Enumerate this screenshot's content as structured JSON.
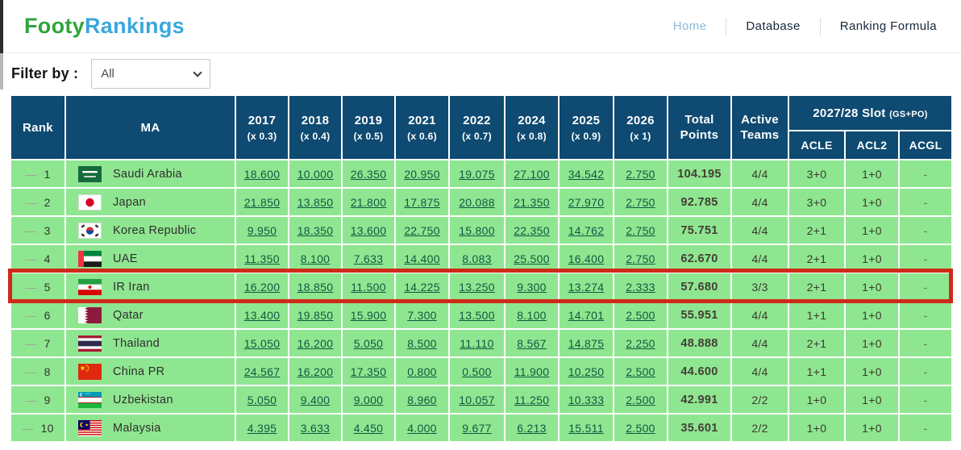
{
  "brand": {
    "name": "FootyRankings",
    "part1": "Footy",
    "part2": "Rankings"
  },
  "nav": {
    "items": [
      {
        "label": "Home",
        "active": true
      },
      {
        "label": "Database",
        "active": false
      },
      {
        "label": "Ranking Formula",
        "active": false
      }
    ]
  },
  "filter": {
    "label": "Filter by :",
    "selected": "All",
    "options": [
      "All"
    ]
  },
  "table": {
    "columns": {
      "rank": "Rank",
      "ma": "MA",
      "years": [
        {
          "year": "2017",
          "mult": "(x 0.3)"
        },
        {
          "year": "2018",
          "mult": "(x 0.4)"
        },
        {
          "year": "2019",
          "mult": "(x 0.5)"
        },
        {
          "year": "2021",
          "mult": "(x 0.6)"
        },
        {
          "year": "2022",
          "mult": "(x 0.7)"
        },
        {
          "year": "2024",
          "mult": "(x 0.8)"
        },
        {
          "year": "2025",
          "mult": "(x 0.9)"
        },
        {
          "year": "2026",
          "mult": "(x 1)"
        }
      ],
      "total_lines": [
        "Total",
        "Points"
      ],
      "active_lines": [
        "Active",
        "Teams"
      ],
      "slot_group": "2027/28 Slot",
      "slot_group_note": "(GS+PO)",
      "slots": [
        "ACLE",
        "ACL2",
        "ACGL"
      ]
    },
    "rows": [
      {
        "trend": "—",
        "rank": "1",
        "flag": "saudi-arabia",
        "country": "Saudi Arabia",
        "scores": [
          "18.600",
          "10.000",
          "26.350",
          "20.950",
          "19.075",
          "27.100",
          "34.542",
          "2.750"
        ],
        "total": "104.195",
        "active": "4/4",
        "slots": [
          "3+0",
          "1+0",
          "-"
        ],
        "highlighted": false
      },
      {
        "trend": "—",
        "rank": "2",
        "flag": "japan",
        "country": "Japan",
        "scores": [
          "21.850",
          "13.850",
          "21.800",
          "17.875",
          "20.088",
          "21.350",
          "27.970",
          "2.750"
        ],
        "total": "92.785",
        "active": "4/4",
        "slots": [
          "3+0",
          "1+0",
          "-"
        ],
        "highlighted": false
      },
      {
        "trend": "—",
        "rank": "3",
        "flag": "korea-republic",
        "country": "Korea Republic",
        "scores": [
          "9.950",
          "18.350",
          "13.600",
          "22.750",
          "15.800",
          "22.350",
          "14.762",
          "2.750"
        ],
        "total": "75.751",
        "active": "4/4",
        "slots": [
          "2+1",
          "1+0",
          "-"
        ],
        "highlighted": false
      },
      {
        "trend": "—",
        "rank": "4",
        "flag": "uae",
        "country": "UAE",
        "scores": [
          "11.350",
          "8.100",
          "7.633",
          "14.400",
          "8.083",
          "25.500",
          "16.400",
          "2.750"
        ],
        "total": "62.670",
        "active": "4/4",
        "slots": [
          "2+1",
          "1+0",
          "-"
        ],
        "highlighted": false
      },
      {
        "trend": "—",
        "rank": "5",
        "flag": "ir-iran",
        "country": "IR Iran",
        "scores": [
          "16.200",
          "18.850",
          "11.500",
          "14.225",
          "13.250",
          "9.300",
          "13.274",
          "2.333"
        ],
        "total": "57.680",
        "active": "3/3",
        "slots": [
          "2+1",
          "1+0",
          "-"
        ],
        "highlighted": true
      },
      {
        "trend": "—",
        "rank": "6",
        "flag": "qatar",
        "country": "Qatar",
        "scores": [
          "13.400",
          "19.850",
          "15.900",
          "7.300",
          "13.500",
          "8.100",
          "14.701",
          "2.500"
        ],
        "total": "55.951",
        "active": "4/4",
        "slots": [
          "1+1",
          "1+0",
          "-"
        ],
        "highlighted": false
      },
      {
        "trend": "—",
        "rank": "7",
        "flag": "thailand",
        "country": "Thailand",
        "scores": [
          "15.050",
          "16.200",
          "5.050",
          "8.500",
          "11.110",
          "8.567",
          "14.875",
          "2.250"
        ],
        "total": "48.888",
        "active": "4/4",
        "slots": [
          "2+1",
          "1+0",
          "-"
        ],
        "highlighted": false
      },
      {
        "trend": "—",
        "rank": "8",
        "flag": "china-pr",
        "country": "China PR",
        "scores": [
          "24.567",
          "16.200",
          "17.350",
          "0.800",
          "0.500",
          "11.900",
          "10.250",
          "2.500"
        ],
        "total": "44.600",
        "active": "4/4",
        "slots": [
          "1+1",
          "1+0",
          "-"
        ],
        "highlighted": false
      },
      {
        "trend": "—",
        "rank": "9",
        "flag": "uzbekistan",
        "country": "Uzbekistan",
        "scores": [
          "5.050",
          "9.400",
          "9.000",
          "8.960",
          "10.057",
          "11.250",
          "10.333",
          "2.500"
        ],
        "total": "42.991",
        "active": "2/2",
        "slots": [
          "1+0",
          "1+0",
          "-"
        ],
        "highlighted": false
      },
      {
        "trend": "—",
        "rank": "10",
        "flag": "malaysia",
        "country": "Malaysia",
        "scores": [
          "4.395",
          "3.633",
          "4.450",
          "4.000",
          "9.677",
          "6.213",
          "15.511",
          "2.500"
        ],
        "total": "35.601",
        "active": "2/2",
        "slots": [
          "1+0",
          "1+0",
          "-"
        ],
        "highlighted": false
      }
    ]
  },
  "colors": {
    "logo_green": "#2fa53b",
    "logo_blue": "#3aa7dc",
    "nav_active": "#8cb8d8",
    "header_bg": "#0e4a71",
    "row_green": "#8fe690",
    "link_green": "#0b5a41",
    "highlight_red": "#cf2a19"
  }
}
